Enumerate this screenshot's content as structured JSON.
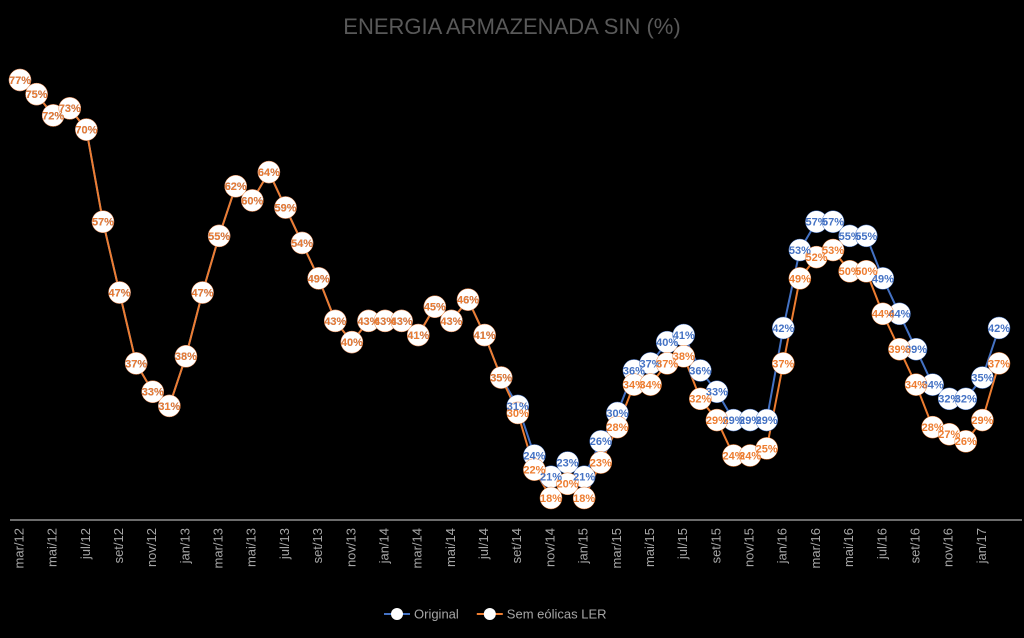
{
  "chart_data": {
    "type": "line",
    "title": "ENERGIA ARMAZENADA SIN (%)",
    "categories": [
      "mar/12",
      null,
      "mai/12",
      null,
      "jul/12",
      null,
      "set/12",
      null,
      "nov/12",
      null,
      "jan/13",
      null,
      "mar/13",
      null,
      "mai/13",
      null,
      "jul/13",
      null,
      "set/13",
      null,
      "nov/13",
      null,
      "jan/14",
      null,
      "mar/14",
      null,
      "mai/14",
      null,
      "jul/14",
      null,
      "set/14",
      null,
      "nov/14",
      null,
      "jan/15",
      null,
      "mar/15",
      null,
      "mai/15",
      null,
      "jul/15",
      null,
      "set/15",
      null,
      "nov/15",
      null,
      "jan/16",
      null,
      "mar/16",
      null,
      "mai/16",
      null,
      "jul/16",
      null,
      "set/16",
      null,
      "nov/16",
      null,
      "jan/17",
      null
    ],
    "series": [
      {
        "name": "Original",
        "color": "#4472c4",
        "values": [
          77,
          75,
          72,
          73,
          70,
          57,
          47,
          37,
          33,
          31,
          38,
          47,
          55,
          62,
          60,
          64,
          59,
          54,
          49,
          43,
          40,
          43,
          43,
          43,
          41,
          45,
          43,
          46,
          41,
          35,
          31,
          24,
          21,
          23,
          21,
          26,
          30,
          36,
          37,
          40,
          41,
          36,
          33,
          29,
          29,
          29,
          42,
          53,
          57,
          57,
          55,
          55,
          49,
          44,
          39,
          34,
          32,
          32,
          35,
          42
        ],
        "value_labels": [
          "77%",
          "75%",
          "72%",
          "73%",
          "70%",
          "57%",
          "47%",
          "37%",
          "33%",
          "31%",
          "38%",
          "47%",
          "55%",
          "62%",
          "60%",
          "64%",
          "59%",
          "54%",
          "49%",
          "43%",
          "40%",
          "43%",
          "43%",
          "43%",
          "41%",
          "45%",
          "43%",
          "46%",
          "41%",
          "35%",
          "31%",
          "24%",
          "21%",
          "23%",
          "21%",
          "26%",
          "30%",
          "36%",
          "37%",
          "40%",
          "41%",
          "36%",
          "33%",
          "29%",
          "29%",
          "29%",
          "42%",
          "53%",
          "57%",
          "57%",
          "55%",
          "55%",
          "49%",
          "44%",
          "39%",
          "34%",
          "32%",
          "32%",
          "35%",
          "42%"
        ]
      },
      {
        "name": "Sem eólicas LER",
        "color": "#ed7d31",
        "values": [
          77,
          75,
          72,
          73,
          70,
          57,
          47,
          37,
          33,
          31,
          38,
          47,
          55,
          62,
          60,
          64,
          59,
          54,
          49,
          43,
          40,
          43,
          43,
          43,
          41,
          45,
          43,
          46,
          41,
          35,
          30,
          22,
          18,
          20,
          18,
          23,
          28,
          34,
          34,
          37,
          38,
          32,
          29,
          24,
          24,
          25,
          37,
          49,
          52,
          53,
          50,
          50,
          44,
          39,
          34,
          28,
          27,
          26,
          29,
          37
        ],
        "value_labels": [
          "77%",
          "75%",
          "72%",
          "73%",
          "70%",
          "57%",
          "47%",
          "37%",
          "33%",
          "31%",
          "38%",
          "47%",
          "55%",
          "62%",
          "60%",
          "64%",
          "59%",
          "54%",
          "49%",
          "43%",
          "40%",
          "43%",
          "43%",
          "43%",
          "41%",
          "45%",
          "43%",
          "46%",
          "41%",
          "35%",
          "30%",
          "22%",
          "18%",
          "20%",
          "18%",
          "23%",
          "28%",
          "34%",
          "34%",
          "37%",
          "38%",
          "32%",
          "29%",
          "24%",
          "24%",
          "25%",
          "37%",
          "49%",
          "52%",
          "53%",
          "50%",
          "50%",
          "44%",
          "39%",
          "34%",
          "28%",
          "27%",
          "26%",
          "29%",
          "37%"
        ]
      }
    ]
  }
}
